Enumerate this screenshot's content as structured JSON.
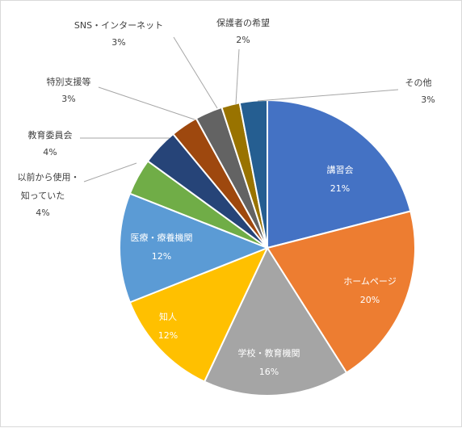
{
  "chart_data": {
    "type": "pie",
    "title": "",
    "legend": "none",
    "slices": [
      {
        "label": "講習会",
        "value": 21,
        "value_label": "21%",
        "color": "#4472C4",
        "label_color": "#ffffff"
      },
      {
        "label": "ホームページ",
        "value": 20,
        "value_label": "20%",
        "color": "#ED7D31",
        "label_color": "#ffffff"
      },
      {
        "label": "学校・教育機関",
        "value": 16,
        "value_label": "16%",
        "color": "#A5A5A5",
        "label_color": "#ffffff"
      },
      {
        "label": "知人",
        "value": 12,
        "value_label": "12%",
        "color": "#FFC000",
        "label_color": "#ffffff"
      },
      {
        "label": "医療・療養機関",
        "value": 12,
        "value_label": "12%",
        "color": "#5B9BD5",
        "label_color": "#ffffff"
      },
      {
        "label": "以前から使用・知っていた",
        "value": 4,
        "value_label": "4%",
        "color": "#70AD47",
        "label_color": "#404040"
      },
      {
        "label": "教育委員会",
        "value": 4,
        "value_label": "4%",
        "color": "#264478",
        "label_color": "#404040"
      },
      {
        "label": "特別支援等",
        "value": 3,
        "value_label": "3%",
        "color": "#9E480E",
        "label_color": "#404040"
      },
      {
        "label": "SNS・インターネット",
        "value": 3,
        "value_label": "3%",
        "color": "#636363",
        "label_color": "#404040"
      },
      {
        "label": "保護者の希望",
        "value": 2,
        "value_label": "2%",
        "color": "#997300",
        "label_color": "#404040"
      },
      {
        "label": "その他",
        "value": 3,
        "value_label": "3%",
        "color": "#255E91",
        "label_color": "#404040"
      }
    ]
  }
}
